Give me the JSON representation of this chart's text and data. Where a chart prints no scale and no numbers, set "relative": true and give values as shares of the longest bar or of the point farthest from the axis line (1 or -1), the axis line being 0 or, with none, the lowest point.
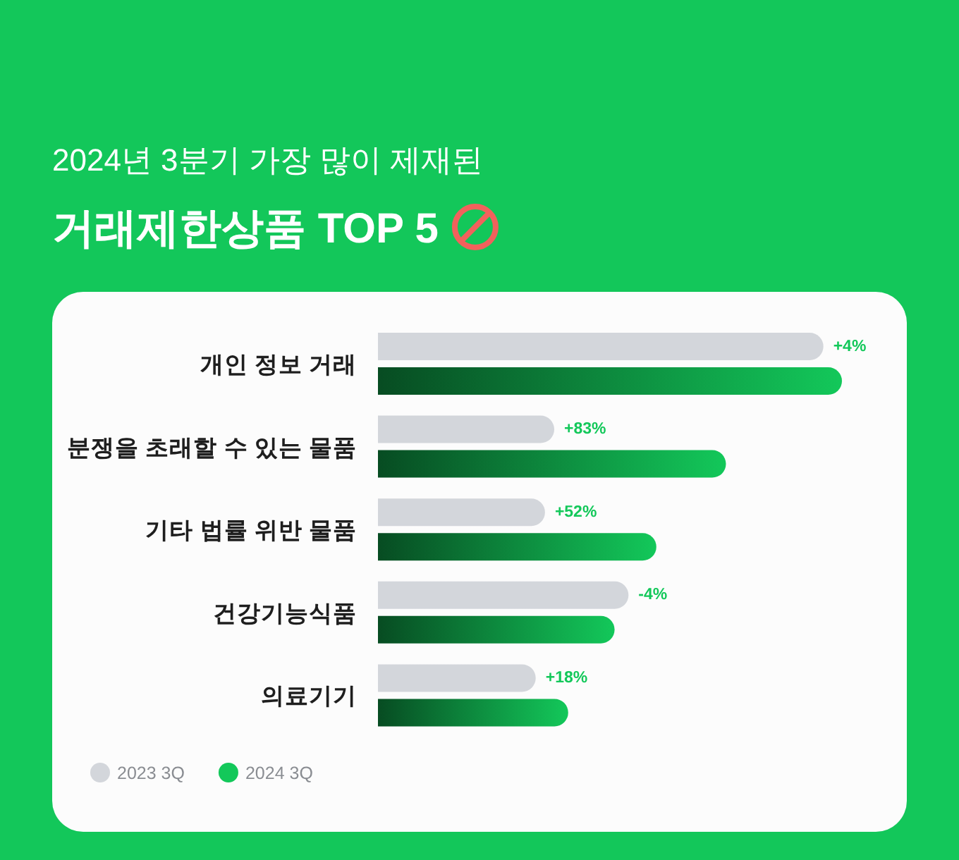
{
  "chart_data": {
    "type": "bar",
    "orientation": "horizontal",
    "relative": true,
    "subtitle": "2024년 3분기 가장 많이 제재된",
    "title": "거래제한상품 TOP 5",
    "categories": [
      "개인 정보 거래",
      "분쟁을 초래할 수 있는 물품",
      "기타 법률 위반 물품",
      "건강기능식품",
      "의료기기"
    ],
    "series": [
      {
        "name": "2023 3Q",
        "color": "#d3d6db",
        "values": [
          0.96,
          0.38,
          0.36,
          0.54,
          0.34
        ]
      },
      {
        "name": "2024 3Q",
        "color": "#13c85a",
        "values": [
          1.0,
          0.75,
          0.6,
          0.51,
          0.41
        ]
      }
    ],
    "annotations": [
      "+4%",
      "+83%",
      "+52%",
      "-4%",
      "+18%"
    ],
    "legend": "bottom left"
  }
}
